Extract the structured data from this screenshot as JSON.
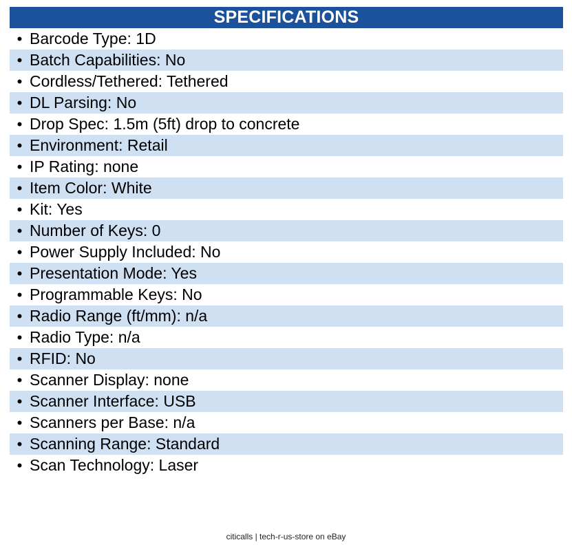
{
  "header": {
    "title": "SPECIFICATIONS"
  },
  "specs": {
    "bullet": "•",
    "items": [
      "Barcode Type: 1D",
      "Batch Capabilities: No",
      "Cordless/Tethered: Tethered",
      "DL Parsing: No",
      "Drop Spec: 1.5m (5ft) drop to concrete",
      "Environment: Retail",
      "IP Rating: none",
      "Item Color: White",
      "Kit: Yes",
      "Number of Keys: 0",
      "Power Supply Included: No",
      "Presentation Mode: Yes",
      "Programmable Keys: No",
      "Radio Range (ft/mm): n/a",
      "Radio Type: n/a",
      "RFID: No",
      "Scanner Display: none",
      "Scanner Interface: USB",
      "Scanners per Base: n/a",
      "Scanning Range: Standard",
      "Scan Technology: Laser"
    ]
  },
  "footer": {
    "text": "citicalls | tech-r-us-store on eBay"
  },
  "colors": {
    "header_bg": "#1c519b",
    "stripe_bg": "#cfe0f2"
  }
}
